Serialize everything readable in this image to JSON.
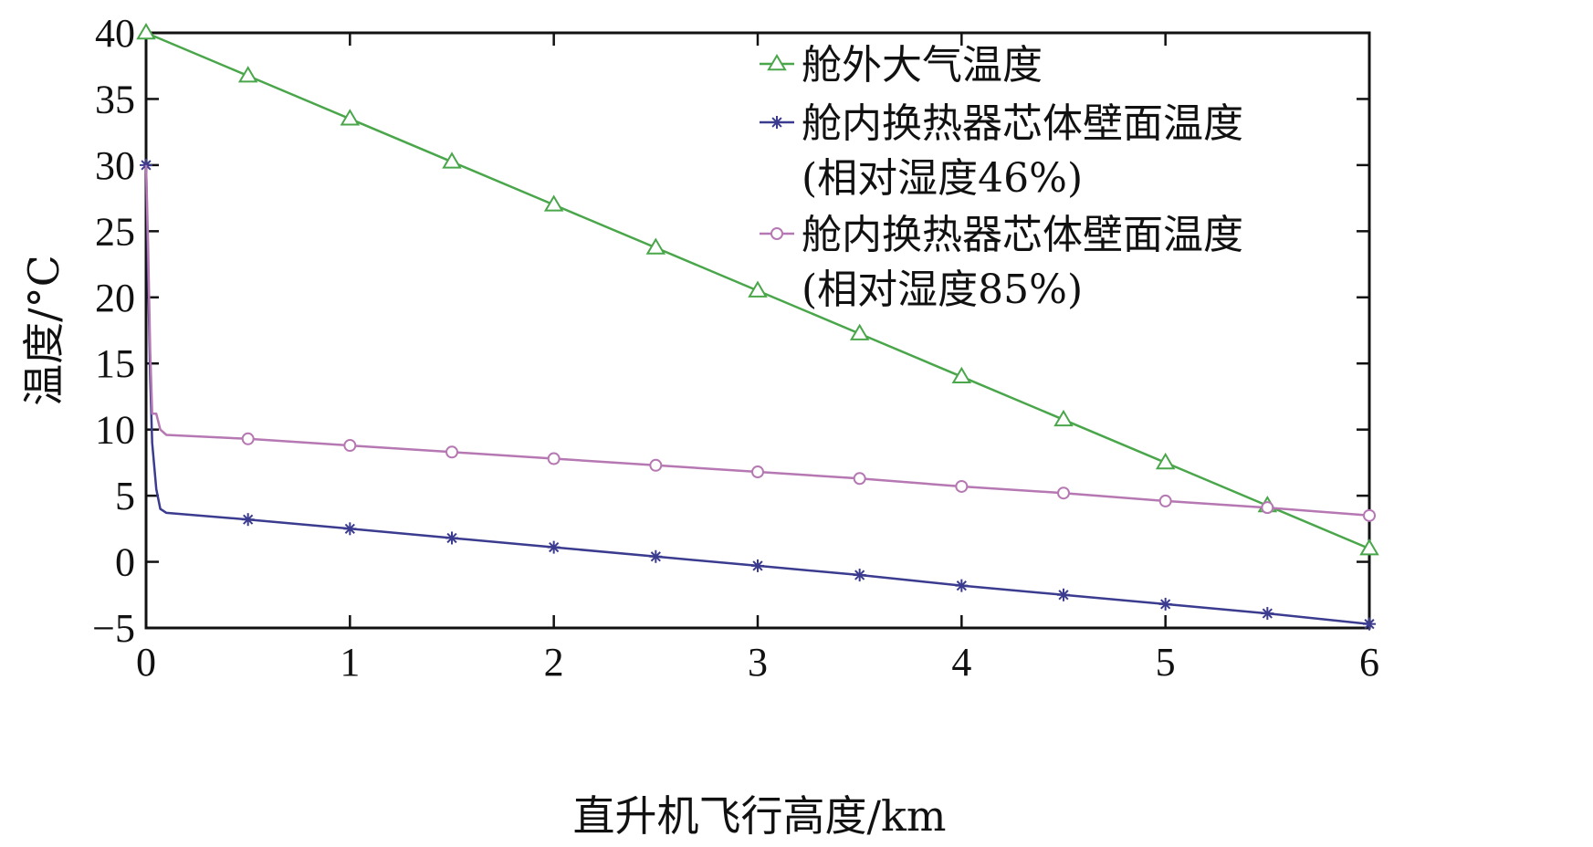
{
  "chart_data": {
    "type": "line",
    "xlabel": "直升机飞行高度/km",
    "ylabel": "温度/°C",
    "xlim": [
      0,
      6
    ],
    "ylim": [
      -5,
      40
    ],
    "xticks": [
      0,
      1,
      2,
      3,
      4,
      5,
      6
    ],
    "yticks": [
      -5,
      0,
      5,
      10,
      15,
      20,
      25,
      30,
      35,
      40
    ],
    "grid": false,
    "legend_position": "top-right",
    "series": [
      {
        "name": "舱外大气温度",
        "color": "#4aa64a",
        "marker": "triangle",
        "x": [
          0,
          0.5,
          1,
          1.5,
          2,
          2.5,
          3,
          3.5,
          4,
          4.5,
          5,
          5.5,
          6
        ],
        "y": [
          40,
          36.75,
          33.5,
          30.25,
          27,
          23.75,
          20.5,
          17.25,
          14,
          10.75,
          7.5,
          4.25,
          1
        ],
        "marker_x": [
          0,
          0.5,
          1,
          1.5,
          2,
          2.5,
          3,
          3.5,
          4,
          4.5,
          5,
          5.5,
          6
        ]
      },
      {
        "name": "舱内换热器芯体壁面温度",
        "name_line2": "(相对湿度46%)",
        "color": "#3b3b8f",
        "marker": "star",
        "x": [
          0,
          0.01,
          0.02,
          0.03,
          0.05,
          0.07,
          0.1,
          0.5,
          1,
          1.5,
          2,
          2.5,
          3,
          3.5,
          4,
          4.5,
          5,
          5.5,
          6
        ],
        "y": [
          30,
          22,
          14,
          9,
          5.5,
          4,
          3.7,
          3.2,
          2.5,
          1.8,
          1.1,
          0.4,
          -0.3,
          -1.0,
          -1.8,
          -2.5,
          -3.2,
          -3.9,
          -4.7
        ],
        "marker_x": [
          0,
          0.5,
          1,
          1.5,
          2,
          2.5,
          3,
          3.5,
          4,
          4.5,
          5,
          5.5,
          6
        ]
      },
      {
        "name": "舱内换热器芯体壁面温度",
        "name_line2": "(相对湿度85%)",
        "color": "#b678b2",
        "marker": "circle",
        "x": [
          0,
          0.01,
          0.02,
          0.03,
          0.05,
          0.07,
          0.1,
          0.5,
          1,
          1.5,
          2,
          2.5,
          3,
          3.5,
          4,
          4.5,
          5,
          5.5,
          6
        ],
        "y": [
          30,
          24,
          16,
          11.2,
          11.2,
          10,
          9.6,
          9.3,
          8.8,
          8.3,
          7.8,
          7.3,
          6.8,
          6.3,
          5.7,
          5.2,
          4.6,
          4.1,
          3.5
        ],
        "marker_x": [
          0.5,
          1,
          1.5,
          2,
          2.5,
          3,
          3.5,
          4,
          4.5,
          5,
          5.5,
          6
        ]
      }
    ]
  }
}
